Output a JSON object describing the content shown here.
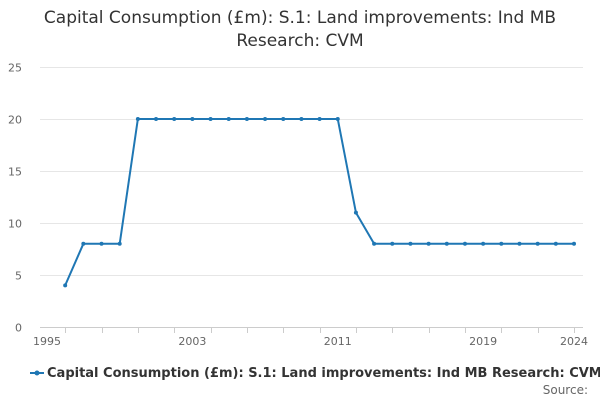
{
  "chart_data": {
    "type": "line",
    "title_lines": [
      "Capital Consumption (£m): S.1: Land improvements: Ind MB",
      "Research: CVM"
    ],
    "x": [
      1996,
      1997,
      1998,
      1999,
      2000,
      2001,
      2002,
      2003,
      2004,
      2005,
      2006,
      2007,
      2008,
      2009,
      2010,
      2011,
      2012,
      2013,
      2014,
      2015,
      2016,
      2017,
      2018,
      2019,
      2020,
      2021,
      2022,
      2023,
      2024
    ],
    "series": [
      {
        "name": "Capital Consumption (£m): S.1: Land improvements: Ind MB Research: CVM",
        "color": "#1f77b4",
        "values": [
          4,
          8,
          8,
          8,
          20,
          20,
          20,
          20,
          20,
          20,
          20,
          20,
          20,
          20,
          20,
          20,
          11,
          8,
          8,
          8,
          8,
          8,
          8,
          8,
          8,
          8,
          8,
          8,
          8
        ]
      }
    ],
    "xlim": [
      1995,
      2024
    ],
    "ylim": [
      0,
      25
    ],
    "x_tick_labels": [
      "1995",
      "2003",
      "2011",
      "2019",
      "2024"
    ],
    "y_tick_labels": [
      "0",
      "5",
      "10",
      "15",
      "20",
      "25"
    ],
    "xlabel": "",
    "ylabel": "",
    "grid": "horizontal",
    "legend_position": "bottom",
    "source_label": "Source:"
  }
}
